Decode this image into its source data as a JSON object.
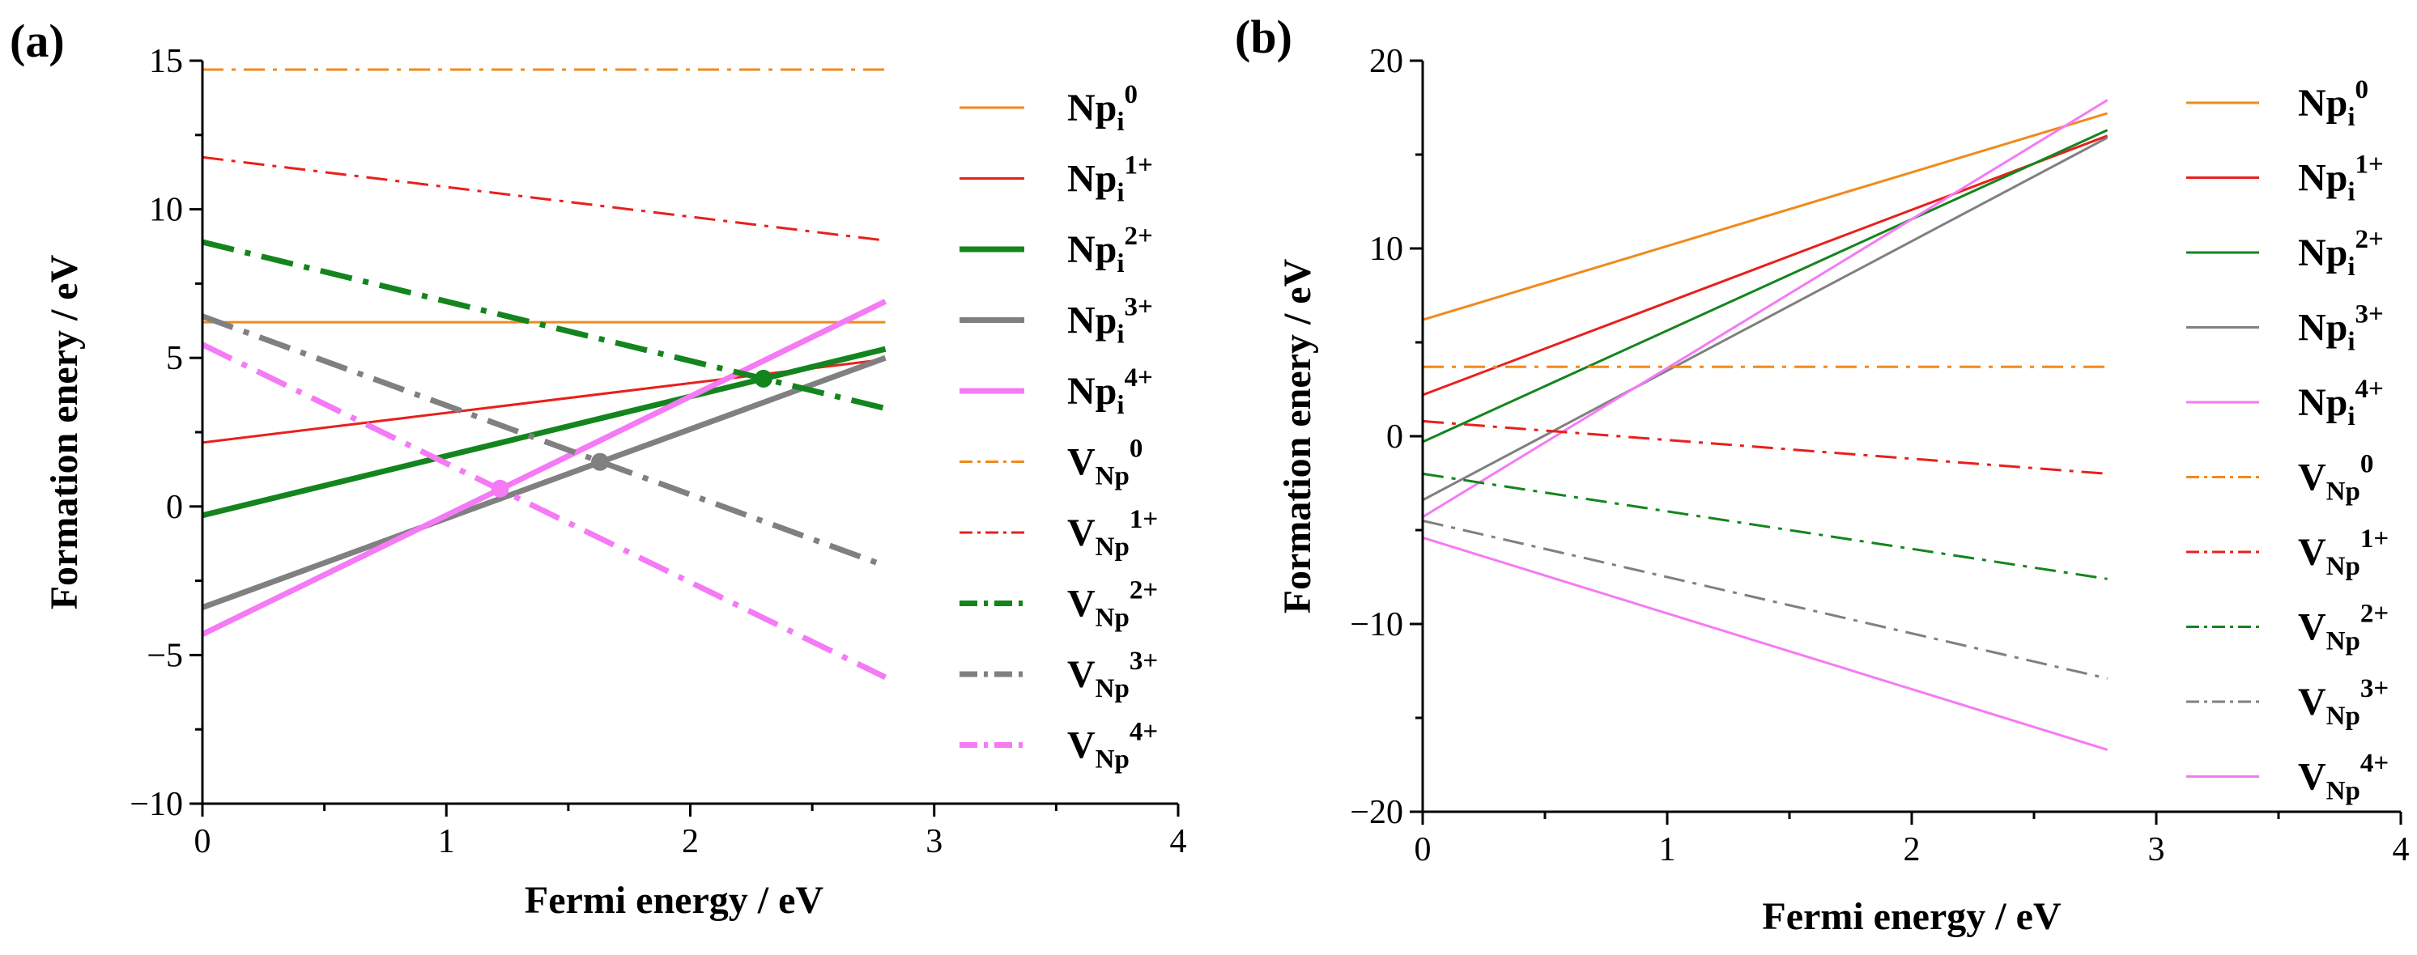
{
  "chart_data": [
    {
      "type": "line",
      "panel_label": "(a)",
      "xlabel": "Fermi energy / eV",
      "ylabel": "Formation enery / eV",
      "xlim": [
        0,
        4
      ],
      "ylim": [
        -10,
        15
      ],
      "xticks": [
        0,
        1,
        2,
        3,
        4
      ],
      "yticks": [
        -10,
        -5,
        0,
        5,
        10,
        15
      ],
      "ytick_labels": [
        "−10",
        "−5",
        "0",
        "5",
        "10",
        "15"
      ],
      "legend_position": "right",
      "series": [
        {
          "name": "Np",
          "sub": "i",
          "sup": "0",
          "color": "#F08A1C",
          "style": "solid",
          "weight": "thin",
          "x": [
            0,
            2.8
          ],
          "y": [
            6.2,
            6.2
          ]
        },
        {
          "name": "Np",
          "sub": "i",
          "sup": "1+",
          "color": "#E8201C",
          "style": "solid",
          "weight": "thin",
          "x": [
            0,
            2.8
          ],
          "y": [
            2.15,
            4.95
          ]
        },
        {
          "name": "Np",
          "sub": "i",
          "sup": "2+",
          "color": "#14851E",
          "style": "solid",
          "weight": "thick",
          "x": [
            0,
            2.8
          ],
          "y": [
            -0.3,
            5.3
          ]
        },
        {
          "name": "Np",
          "sub": "i",
          "sup": "3+",
          "color": "#808080",
          "style": "solid",
          "weight": "thick",
          "x": [
            0,
            2.8
          ],
          "y": [
            -3.4,
            5.0
          ]
        },
        {
          "name": "Np",
          "sub": "i",
          "sup": "4+",
          "color": "#F57AF5",
          "style": "solid",
          "weight": "thick",
          "x": [
            0,
            2.8
          ],
          "y": [
            -4.3,
            6.9
          ]
        },
        {
          "name": "V",
          "sub": "Np",
          "sup": "0",
          "color": "#F08A1C",
          "style": "dashdot",
          "weight": "thin",
          "x": [
            0,
            2.8
          ],
          "y": [
            14.7,
            14.7
          ]
        },
        {
          "name": "V",
          "sub": "Np",
          "sup": "1+",
          "color": "#E8201C",
          "style": "dashdot",
          "weight": "thin",
          "x": [
            0,
            2.8
          ],
          "y": [
            11.75,
            8.95
          ]
        },
        {
          "name": "V",
          "sub": "Np",
          "sup": "2+",
          "color": "#14851E",
          "style": "dashdot",
          "weight": "thick",
          "x": [
            0,
            2.8
          ],
          "y": [
            8.9,
            3.3
          ]
        },
        {
          "name": "V",
          "sub": "Np",
          "sup": "3+",
          "color": "#808080",
          "style": "dashdot",
          "weight": "thick",
          "x": [
            0,
            2.8
          ],
          "y": [
            6.4,
            -2.0
          ]
        },
        {
          "name": "V",
          "sub": "Np",
          "sup": "4+",
          "color": "#F57AF5",
          "style": "dashdot",
          "weight": "thick",
          "x": [
            0,
            2.8
          ],
          "y": [
            5.45,
            -5.75
          ]
        }
      ],
      "markers": [
        {
          "x": 2.3,
          "y": 4.3,
          "color": "#14851E"
        },
        {
          "x": 1.63,
          "y": 1.5,
          "color": "#808080"
        },
        {
          "x": 1.22,
          "y": 0.6,
          "color": "#F57AF5"
        }
      ]
    },
    {
      "type": "line",
      "panel_label": "(b)",
      "xlabel": "Fermi energy / eV",
      "ylabel": "Formation enery / eV",
      "xlim": [
        0,
        4
      ],
      "ylim": [
        -20,
        20
      ],
      "xticks": [
        0,
        1,
        2,
        3,
        4
      ],
      "yticks": [
        -20,
        -10,
        0,
        10,
        20
      ],
      "ytick_labels": [
        "−20",
        "−10",
        "0",
        "10",
        "20"
      ],
      "legend_position": "right",
      "series": [
        {
          "name": "Np",
          "sub": "i",
          "sup": "0",
          "color": "#F08A1C",
          "style": "solid",
          "weight": "thin",
          "x": [
            0,
            2.8
          ],
          "y": [
            6.2,
            17.2
          ]
        },
        {
          "name": "Np",
          "sub": "i",
          "sup": "1+",
          "color": "#E8201C",
          "style": "solid",
          "weight": "thin",
          "x": [
            0,
            2.8
          ],
          "y": [
            2.2,
            16.0
          ]
        },
        {
          "name": "Np",
          "sub": "i",
          "sup": "2+",
          "color": "#14851E",
          "style": "solid",
          "weight": "thin",
          "x": [
            0,
            2.8
          ],
          "y": [
            -0.3,
            16.3
          ]
        },
        {
          "name": "Np",
          "sub": "i",
          "sup": "3+",
          "color": "#808080",
          "style": "solid",
          "weight": "thin",
          "x": [
            0,
            2.8
          ],
          "y": [
            -3.4,
            15.9
          ]
        },
        {
          "name": "Np",
          "sub": "i",
          "sup": "4+",
          "color": "#F57AF5",
          "style": "solid",
          "weight": "thin",
          "x": [
            0,
            2.8
          ],
          "y": [
            -4.3,
            17.9
          ]
        },
        {
          "name": "V",
          "sub": "Np",
          "sup": "0",
          "color": "#F08A1C",
          "style": "dashdot",
          "weight": "thin",
          "x": [
            0,
            2.8
          ],
          "y": [
            3.7,
            3.7
          ]
        },
        {
          "name": "V",
          "sub": "Np",
          "sup": "1+",
          "color": "#E8201C",
          "style": "dashdot",
          "weight": "thin",
          "x": [
            0,
            2.8
          ],
          "y": [
            0.8,
            -2.0
          ]
        },
        {
          "name": "V",
          "sub": "Np",
          "sup": "2+",
          "color": "#14851E",
          "style": "dashdot",
          "weight": "thin",
          "x": [
            0,
            2.8
          ],
          "y": [
            -2.0,
            -7.6
          ]
        },
        {
          "name": "V",
          "sub": "Np",
          "sup": "3+",
          "color": "#808080",
          "style": "dashdot",
          "weight": "thin",
          "x": [
            0,
            2.8
          ],
          "y": [
            -4.5,
            -12.9
          ]
        },
        {
          "name": "V",
          "sub": "Np",
          "sup": "4+",
          "color": "#F57AF5",
          "style": "solid",
          "weight": "thin",
          "x": [
            0,
            2.8
          ],
          "y": [
            -5.4,
            -16.7
          ]
        }
      ],
      "markers": []
    }
  ]
}
